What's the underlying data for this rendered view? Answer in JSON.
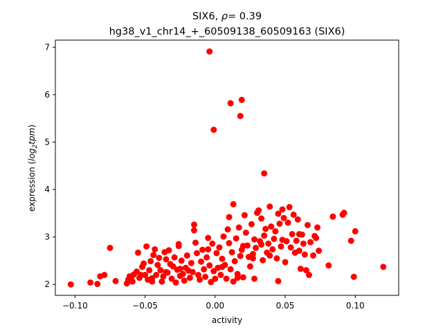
{
  "chart_data": {
    "type": "scatter",
    "title_gene": "SIX6,",
    "title_rho_symbol": "ρ",
    "title_rho_value": "= 0.39",
    "subtitle": "hg38_v1_chr14_+_60509138_60509163 (SIX6)",
    "xlabel": "activity",
    "ylabel_prefix": "expression (",
    "ylabel_italic": "log",
    "ylabel_sub": "2",
    "ylabel_italic2": "tpm",
    "ylabel_suffix": ")",
    "xlim": [
      -0.114,
      0.131
    ],
    "ylim": [
      1.77,
      7.15
    ],
    "xticks": [
      {
        "value": -0.1,
        "label": "−0.10"
      },
      {
        "value": -0.05,
        "label": "−0.05"
      },
      {
        "value": 0.0,
        "label": "0.00"
      },
      {
        "value": 0.05,
        "label": "0.05"
      },
      {
        "value": 0.1,
        "label": "0.10"
      }
    ],
    "yticks": [
      {
        "value": 2,
        "label": "2"
      },
      {
        "value": 3,
        "label": "3"
      },
      {
        "value": 4,
        "label": "4"
      },
      {
        "value": 5,
        "label": "5"
      },
      {
        "value": 6,
        "label": "6"
      },
      {
        "value": 7,
        "label": "7"
      }
    ],
    "marker_color": "#ff0000",
    "grid": false,
    "points": [
      [
        -0.103,
        2.0
      ],
      [
        -0.089,
        2.04
      ],
      [
        -0.084,
        2.01
      ],
      [
        -0.082,
        2.17
      ],
      [
        -0.079,
        2.2
      ],
      [
        -0.075,
        2.77
      ],
      [
        -0.071,
        2.07
      ],
      [
        -0.063,
        2.02
      ],
      [
        -0.062,
        2.1
      ],
      [
        -0.061,
        2.17
      ],
      [
        -0.059,
        2.06
      ],
      [
        -0.058,
        2.21
      ],
      [
        -0.056,
        2.27
      ],
      [
        -0.055,
        2.67
      ],
      [
        -0.054,
        2.14
      ],
      [
        -0.053,
        2.2
      ],
      [
        -0.052,
        2.37
      ],
      [
        -0.051,
        2.44
      ],
      [
        -0.05,
        2.2
      ],
      [
        -0.049,
        2.8
      ],
      [
        -0.048,
        2.1
      ],
      [
        -0.047,
        2.3
      ],
      [
        -0.046,
        2.49
      ],
      [
        -0.045,
        2.13
      ],
      [
        -0.044,
        2.62
      ],
      [
        -0.043,
        2.74
      ],
      [
        -0.042,
        2.2
      ],
      [
        -0.041,
        2.41
      ],
      [
        -0.04,
        2.56
      ],
      [
        -0.039,
        2.3
      ],
      [
        -0.038,
        2.06
      ],
      [
        -0.037,
        2.17
      ],
      [
        -0.036,
        2.68
      ],
      [
        -0.035,
        2.53
      ],
      [
        -0.034,
        2.25
      ],
      [
        -0.033,
        2.72
      ],
      [
        -0.032,
        2.43
      ],
      [
        -0.031,
        2.12
      ],
      [
        -0.03,
        2.38
      ],
      [
        -0.029,
        2.57
      ],
      [
        -0.028,
        2.04
      ],
      [
        -0.027,
        2.31
      ],
      [
        -0.026,
        2.81
      ],
      [
        -0.026,
        2.85
      ],
      [
        -0.025,
        2.18
      ],
      [
        -0.024,
        2.5
      ],
      [
        -0.023,
        2.22
      ],
      [
        -0.022,
        2.08
      ],
      [
        -0.021,
        2.35
      ],
      [
        -0.02,
        2.61
      ],
      [
        -0.019,
        2.29
      ],
      [
        -0.018,
        2.14
      ],
      [
        -0.017,
        2.45
      ],
      [
        -0.016,
        2.26
      ],
      [
        -0.015,
        3.26
      ],
      [
        -0.015,
        3.14
      ],
      [
        -0.014,
        2.88
      ],
      [
        -0.013,
        2.66
      ],
      [
        -0.012,
        2.2
      ],
      [
        -0.011,
        2.1
      ],
      [
        -0.01,
        2.48
      ],
      [
        -0.009,
        2.73
      ],
      [
        -0.008,
        2.32
      ],
      [
        -0.007,
        2.16
      ],
      [
        -0.006,
        2.57
      ],
      [
        -0.005,
        2.98
      ],
      [
        -0.005,
        2.74
      ],
      [
        -0.004,
        2.4
      ],
      [
        -0.003,
        2.05
      ],
      [
        -0.002,
        2.86
      ],
      [
        -0.001,
        2.28
      ],
      [
        0.0,
        2.12
      ],
      [
        0.001,
        2.66
      ],
      [
        0.002,
        2.35
      ],
      [
        0.003,
        2.78
      ],
      [
        0.004,
        2.2
      ],
      [
        0.005,
        2.54
      ],
      [
        0.006,
        3.01
      ],
      [
        0.007,
        2.41
      ],
      [
        0.008,
        2.12
      ],
      [
        0.009,
        3.16
      ],
      [
        0.01,
        2.87
      ],
      [
        0.011,
        2.32
      ],
      [
        0.012,
        2.68
      ],
      [
        0.013,
        2.06
      ],
      [
        0.014,
        2.49
      ],
      [
        0.015,
        2.97
      ],
      [
        0.016,
        2.22
      ],
      [
        0.017,
        3.2
      ],
      [
        0.018,
        2.6
      ],
      [
        0.019,
        2.73
      ],
      [
        0.02,
        2.15
      ],
      [
        0.021,
        3.46
      ],
      [
        0.022,
        3.09
      ],
      [
        0.023,
        2.82
      ],
      [
        0.024,
        2.58
      ],
      [
        0.025,
        2.38
      ],
      [
        0.026,
        3.27
      ],
      [
        0.027,
        2.64
      ],
      [
        0.028,
        2.95
      ],
      [
        0.029,
        2.77
      ],
      [
        0.03,
        3.51
      ],
      [
        0.031,
        3.56
      ],
      [
        0.032,
        2.91
      ],
      [
        0.033,
        3.39
      ],
      [
        0.034,
        2.51
      ],
      [
        0.035,
        3.03
      ],
      [
        0.036,
        3.17
      ],
      [
        0.037,
        2.67
      ],
      [
        0.038,
        2.86
      ],
      [
        0.039,
        3.64
      ],
      [
        0.04,
        3.22
      ],
      [
        0.041,
        2.74
      ],
      [
        0.042,
        2.96
      ],
      [
        0.043,
        3.12
      ],
      [
        0.044,
        2.55
      ],
      [
        0.045,
        3.49
      ],
      [
        0.046,
        3.28
      ],
      [
        0.047,
        2.8
      ],
      [
        0.048,
        3.58
      ],
      [
        0.049,
        3.4
      ],
      [
        0.05,
        2.47
      ],
      [
        0.051,
        2.91
      ],
      [
        0.052,
        3.3
      ],
      [
        0.053,
        3.63
      ],
      [
        0.054,
        2.78
      ],
      [
        0.055,
        3.06
      ],
      [
        0.056,
        3.47
      ],
      [
        0.057,
        2.67
      ],
      [
        0.058,
        2.92
      ],
      [
        0.059,
        3.37
      ],
      [
        0.06,
        2.71
      ],
      [
        0.061,
        2.33
      ],
      [
        0.062,
        3.05
      ],
      [
        0.063,
        2.86
      ],
      [
        0.064,
        2.63
      ],
      [
        0.065,
        2.3
      ],
      [
        0.066,
        3.25
      ],
      [
        0.067,
        2.2
      ],
      [
        0.068,
        2.89
      ],
      [
        0.07,
        2.61
      ],
      [
        0.072,
        2.98
      ],
      [
        0.073,
        3.2
      ],
      [
        0.074,
        2.71
      ],
      [
        0.081,
        2.4
      ],
      [
        0.084,
        3.43
      ],
      [
        0.091,
        3.47
      ],
      [
        0.092,
        3.51
      ],
      [
        0.097,
        2.92
      ],
      [
        0.099,
        2.16
      ],
      [
        0.1,
        3.12
      ],
      [
        0.12,
        2.37
      ],
      [
        -0.004,
        6.91
      ],
      [
        0.011,
        5.82
      ],
      [
        0.019,
        5.89
      ],
      [
        0.018,
        5.55
      ],
      [
        -0.001,
        5.26
      ],
      [
        0.035,
        4.34
      ],
      [
        0.013,
        3.69
      ],
      [
        0.045,
        2.07
      ],
      [
        0.028,
        2.12
      ],
      [
        0.039,
        2.61
      ],
      [
        0.048,
        2.94
      ],
      [
        0.01,
        3.42
      ],
      [
        0.02,
        2.81
      ],
      [
        0.005,
        2.37
      ],
      [
        -0.045,
        2.06
      ],
      [
        -0.035,
        2.26
      ],
      [
        -0.025,
        2.33
      ],
      [
        -0.06,
        2.13
      ],
      [
        0.016,
        2.14
      ],
      [
        0.027,
        2.55
      ],
      [
        0.033,
        2.84
      ],
      [
        0.06,
        3.06
      ],
      [
        0.071,
        3.02
      ]
    ]
  }
}
